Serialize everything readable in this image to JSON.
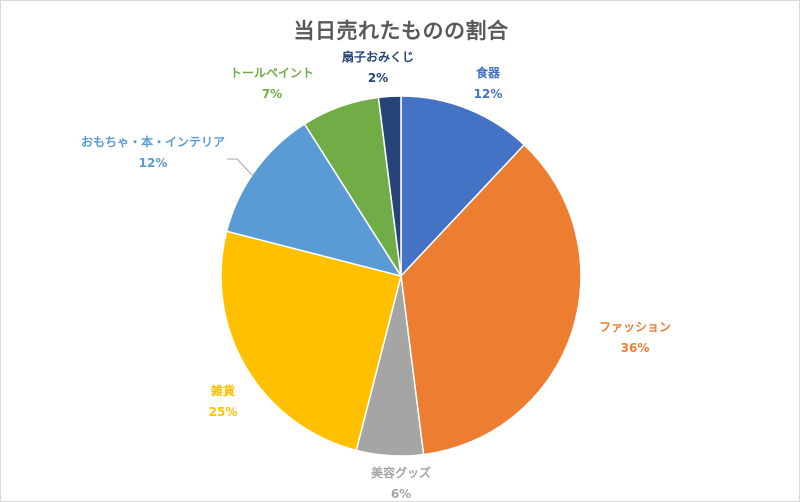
{
  "chart_data": {
    "type": "pie",
    "title": "当日売れたものの割合",
    "start_angle_deg": 0,
    "direction": "clockwise",
    "slices": [
      {
        "label": "食器",
        "value": 12,
        "value_label": "12%",
        "color": "#4472C4"
      },
      {
        "label": "ファッション",
        "value": 36,
        "value_label": "36%",
        "color": "#ED7D31"
      },
      {
        "label": "美容グッズ",
        "value": 6,
        "value_label": "6%",
        "color": "#A5A5A5"
      },
      {
        "label": "雑貨",
        "value": 25,
        "value_label": "25%",
        "color": "#FFC000"
      },
      {
        "label": "おもちゃ・本・インテリア",
        "value": 12,
        "value_label": "12%",
        "color": "#5B9BD5"
      },
      {
        "label": "トールペイント",
        "value": 7,
        "value_label": "7%",
        "color": "#70AD47"
      },
      {
        "label": "扇子おみくじ",
        "value": 2,
        "value_label": "2%",
        "color": "#264478"
      }
    ],
    "legend": "none",
    "data_labels": "outside"
  }
}
